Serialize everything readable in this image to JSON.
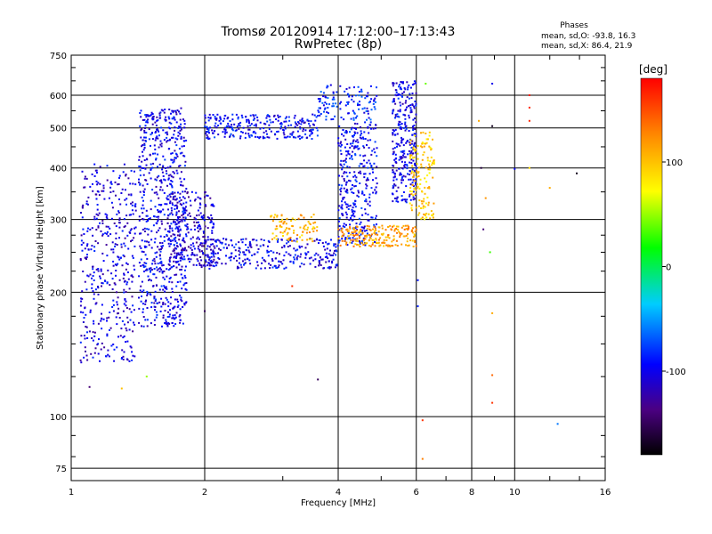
{
  "chart_data": {
    "type": "scatter",
    "title": "Tromsø 20120914 17:12:00–17:13:43",
    "subtitle": "RwPretec (8p)",
    "stats": {
      "header": "Phases",
      "line1": "mean, sd,O: -93.8, 16.3",
      "line2": "mean, sd,X:  86.4, 21.9"
    },
    "xlabel": "Frequency [MHz]",
    "ylabel": "Stationary phase Virtual Height [km]",
    "x_scale": "log",
    "y_scale": "log",
    "xlim": [
      1,
      16
    ],
    "ylim": [
      70,
      750
    ],
    "x_ticks": [
      "1",
      "2",
      "4",
      "6",
      "8",
      "10",
      "16"
    ],
    "y_ticks": [
      "75",
      "100",
      "200",
      "300",
      "400",
      "500",
      "600",
      "750"
    ],
    "grid": true,
    "colorbar": {
      "label": "[deg]",
      "range": [
        -180,
        180
      ],
      "ticks": [
        "100",
        "0",
        "-100"
      ]
    },
    "clusters": [
      {
        "f_range": [
          1.05,
          1.4
        ],
        "h_range": [
          135,
          410
        ],
        "phase": -105,
        "count": 420
      },
      {
        "f_range": [
          1.42,
          1.82
        ],
        "h_range": [
          165,
          560
        ],
        "phase": -100,
        "count": 700
      },
      {
        "f_range": [
          1.65,
          2.1
        ],
        "h_range": [
          230,
          350
        ],
        "phase": -110,
        "count": 250
      },
      {
        "f_range": [
          2.0,
          3.6
        ],
        "h_range": [
          470,
          540
        ],
        "phase": -95,
        "count": 260
      },
      {
        "f_range": [
          3.6,
          4.9
        ],
        "h_range": [
          520,
          640
        ],
        "phase": -85,
        "count": 120
      },
      {
        "f_range": [
          2.0,
          4.0
        ],
        "h_range": [
          228,
          270
        ],
        "phase": -100,
        "count": 300
      },
      {
        "f_range": [
          2.8,
          3.6
        ],
        "h_range": [
          265,
          310
        ],
        "phase": 105,
        "count": 90
      },
      {
        "f_range": [
          4.0,
          4.9
        ],
        "h_range": [
          260,
          520
        ],
        "phase": -95,
        "count": 330
      },
      {
        "f_range": [
          4.0,
          6.0
        ],
        "h_range": [
          258,
          290
        ],
        "phase": 115,
        "count": 200
      },
      {
        "f_range": [
          5.3,
          6.0
        ],
        "h_range": [
          330,
          650
        ],
        "phase": -100,
        "count": 300
      },
      {
        "f_range": [
          5.8,
          6.6
        ],
        "h_range": [
          300,
          490
        ],
        "phase": 95,
        "count": 140
      }
    ],
    "isolated_points": [
      {
        "f": 1.1,
        "h": 118,
        "phase": -140
      },
      {
        "f": 1.3,
        "h": 117,
        "phase": 100
      },
      {
        "f": 1.48,
        "h": 125,
        "phase": 50
      },
      {
        "f": 2.0,
        "h": 180,
        "phase": -150
      },
      {
        "f": 3.15,
        "h": 207,
        "phase": 160
      },
      {
        "f": 3.6,
        "h": 123,
        "phase": -150
      },
      {
        "f": 6.05,
        "h": 214,
        "phase": -90
      },
      {
        "f": 6.05,
        "h": 185,
        "phase": -85
      },
      {
        "f": 6.2,
        "h": 98,
        "phase": 160
      },
      {
        "f": 6.2,
        "h": 79,
        "phase": 130
      },
      {
        "f": 6.3,
        "h": 640,
        "phase": 40
      },
      {
        "f": 8.3,
        "h": 520,
        "phase": 110
      },
      {
        "f": 8.4,
        "h": 400,
        "phase": -160
      },
      {
        "f": 8.5,
        "h": 284,
        "phase": -140
      },
      {
        "f": 8.6,
        "h": 338,
        "phase": 120
      },
      {
        "f": 8.8,
        "h": 250,
        "phase": 30
      },
      {
        "f": 8.9,
        "h": 640,
        "phase": -100
      },
      {
        "f": 8.9,
        "h": 505,
        "phase": -170
      },
      {
        "f": 8.9,
        "h": 178,
        "phase": 110
      },
      {
        "f": 8.9,
        "h": 126,
        "phase": 140
      },
      {
        "f": 8.9,
        "h": 108,
        "phase": 160
      },
      {
        "f": 10.0,
        "h": 398,
        "phase": -95
      },
      {
        "f": 10.8,
        "h": 400,
        "phase": 90
      },
      {
        "f": 10.8,
        "h": 600,
        "phase": 170
      },
      {
        "f": 10.8,
        "h": 560,
        "phase": 165
      },
      {
        "f": 10.8,
        "h": 520,
        "phase": 165
      },
      {
        "f": 12.0,
        "h": 358,
        "phase": 110
      },
      {
        "f": 12.5,
        "h": 96,
        "phase": -60
      },
      {
        "f": 13.8,
        "h": 388,
        "phase": -170
      }
    ]
  }
}
